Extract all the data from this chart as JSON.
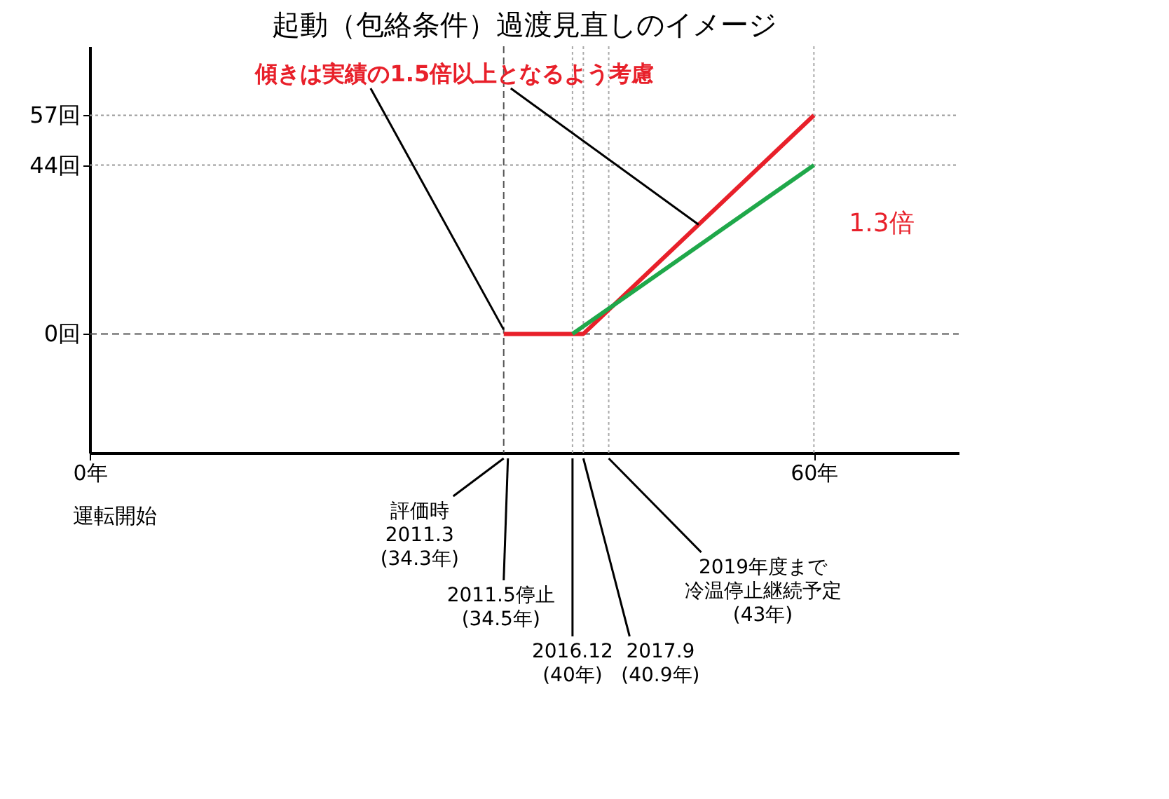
{
  "chart_data": {
    "type": "line",
    "title": "起動（包絡条件）過渡見直しのイメージ",
    "xlim": [
      0,
      72
    ],
    "ylim": [
      -31,
      75
    ],
    "xticks": [
      {
        "value": 0,
        "label": "0年"
      },
      {
        "value": 60,
        "label": "60年"
      }
    ],
    "yticks": [
      {
        "value": 0,
        "label": "0回"
      },
      {
        "value": 44,
        "label": "44回"
      },
      {
        "value": 57,
        "label": "57回"
      }
    ],
    "series": [
      {
        "color": "#e8202a",
        "x": [
          34.3,
          40.9,
          60
        ],
        "values": [
          0,
          0,
          57
        ]
      },
      {
        "color": "#1fa84a",
        "x": [
          40,
          60
        ],
        "values": [
          0,
          44
        ]
      }
    ],
    "ref_lines": [
      {
        "axis": "y",
        "value": 0,
        "color": "#555555",
        "line_style": "dashed"
      },
      {
        "axis": "y",
        "value": 44,
        "color": "#999999",
        "line_style": "dotted"
      },
      {
        "axis": "y",
        "value": 57,
        "color": "#999999",
        "line_style": "dotted"
      },
      {
        "axis": "x",
        "value": 34.3,
        "color": "#555555",
        "line_style": "dashed"
      },
      {
        "axis": "x",
        "value": 40,
        "color": "#aaaaaa",
        "line_style": "dotted"
      },
      {
        "axis": "x",
        "value": 40.9,
        "color": "#aaaaaa",
        "line_style": "dotted"
      },
      {
        "axis": "x",
        "value": 43,
        "color": "#aaaaaa",
        "line_style": "dotted"
      },
      {
        "axis": "x",
        "value": 60,
        "color": "#aaaaaa",
        "line_style": "dotted"
      }
    ],
    "annotations": [
      {
        "text": "傾きは実績の1.5倍以上となるよう考慮",
        "x": 34.3,
        "y": 0
      },
      "1.3倍",
      "運転開始",
      "評価時",
      "2011.3",
      "(34.3年)",
      "2011.5停止",
      "(34.5年)",
      "2016.12",
      "(40年)",
      "2017.9",
      "(40.9年)",
      "2019年度まで",
      "冷温停止継続予定",
      "(43年)"
    ],
    "marker": "none",
    "line_style": "solid",
    "grid": false
  }
}
